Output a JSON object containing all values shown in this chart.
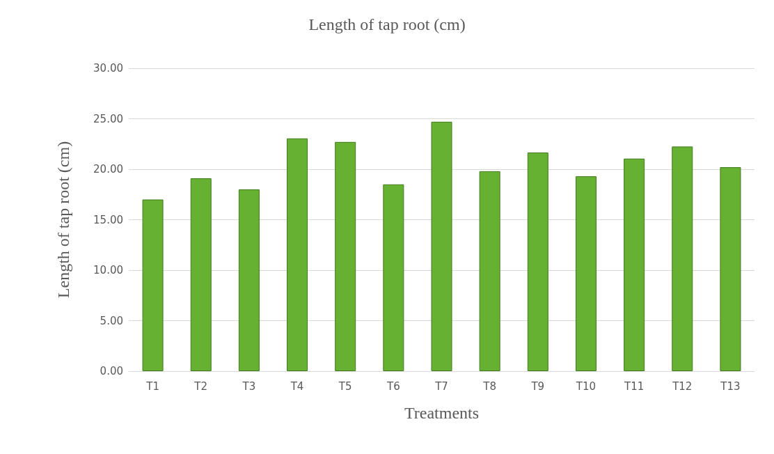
{
  "chart_data": {
    "type": "bar",
    "title": "Length of tap root (cm)",
    "xlabel": "Treatments",
    "ylabel": "Length of tap root (cm)",
    "categories": [
      "T1",
      "T2",
      "T3",
      "T4",
      "T5",
      "T6",
      "T7",
      "T8",
      "T9",
      "T10",
      "T11",
      "T12",
      "T13"
    ],
    "values": [
      17.0,
      19.1,
      18.0,
      23.05,
      22.7,
      18.5,
      24.7,
      19.8,
      21.65,
      19.3,
      21.05,
      22.25,
      20.2
    ],
    "color": "#66b032",
    "ylim": [
      0,
      30
    ],
    "yticks": [
      {
        "value": 0,
        "label": "0.00"
      },
      {
        "value": 5,
        "label": "5.00"
      },
      {
        "value": 10,
        "label": "10.00"
      },
      {
        "value": 15,
        "label": "15.00"
      },
      {
        "value": 20,
        "label": "20.00"
      },
      {
        "value": 25,
        "label": "25.00"
      },
      {
        "value": 30,
        "label": "30.00"
      }
    ],
    "grid": "y"
  }
}
